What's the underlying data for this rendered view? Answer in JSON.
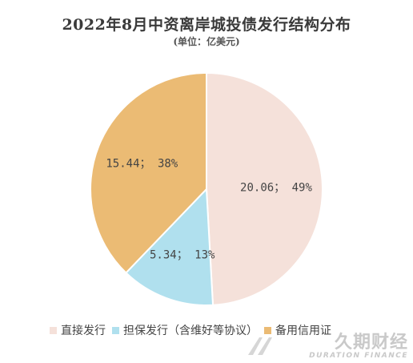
{
  "chart_data": {
    "type": "pie",
    "title": "2022年8月中资离岸城投债发行结构分布",
    "subtitle": "(单位：亿美元)",
    "series": [
      {
        "name": "直接发行",
        "value": 20.06,
        "percent_label": "49%",
        "color": "#f5e1da"
      },
      {
        "name": "担保发行（含维好等协议）",
        "value": 5.34,
        "percent_label": "13%",
        "color": "#b0e0ee"
      },
      {
        "name": "备用信用证",
        "value": 15.44,
        "percent_label": "38%",
        "color": "#ebbb74"
      }
    ],
    "legend_position": "bottom",
    "separator": "；"
  },
  "watermark": {
    "name": "久期财经",
    "sub": "DURATION FINANCE"
  }
}
